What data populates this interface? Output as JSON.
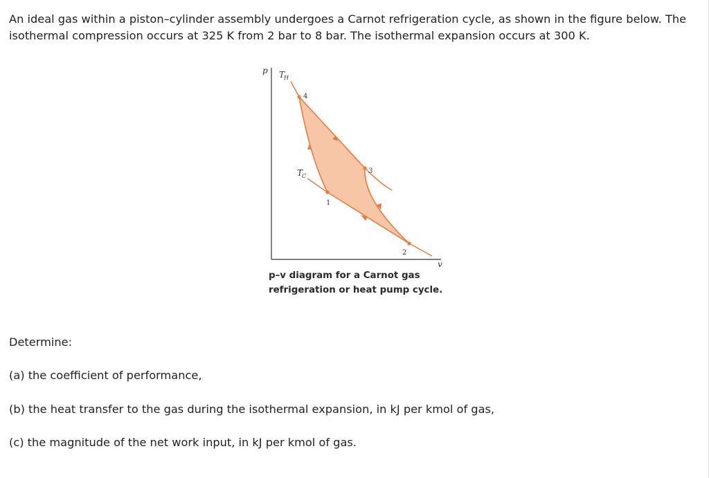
{
  "problem": {
    "statement": "An ideal gas within a piston–cylinder assembly undergoes a Carnot refrigeration cycle, as shown in the figure below. The isothermal compression occurs at 325 K from 2 bar to 8 bar. The isothermal expansion occurs at 300 K."
  },
  "figure": {
    "axis_p": "p",
    "axis_v": "v",
    "th_base": "T",
    "th_sub": "H",
    "tc_base": "T",
    "tc_sub": "C",
    "state_1": "1",
    "state_2": "2",
    "state_3": "3",
    "state_4": "4",
    "caption_line1": "p–v diagram for a Carnot gas",
    "caption_line2": "refrigeration or heat pump cycle.",
    "colors": {
      "fill": "#f7c6a6",
      "line": "#ec7a3c",
      "axis": "#333333"
    }
  },
  "questions": {
    "intro": "Determine:",
    "a": "(a) the coefficient of performance,",
    "b": "(b) the heat transfer to the gas during the isothermal expansion, in kJ per kmol of gas,",
    "c": "(c) the magnitude of the net work input, in kJ per kmol of gas."
  }
}
